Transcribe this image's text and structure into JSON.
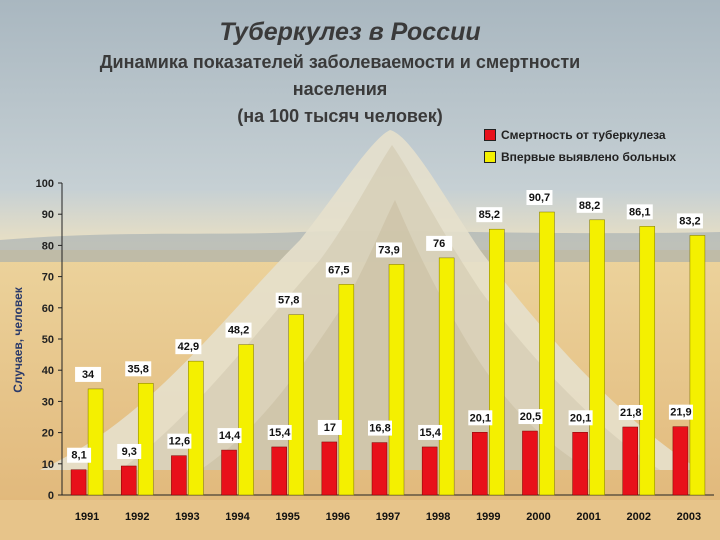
{
  "page": {
    "title": "Туберкулез в России",
    "subtitle_line1": "Динамика показателей заболеваемости и смертности",
    "subtitle_line2": "населения",
    "subtitle_line3": "(на 100 тысяч человек)"
  },
  "colors": {
    "mortality": "#e8101a",
    "incidence": "#f4f000",
    "label_bg": "#ffffff"
  },
  "chart_data": {
    "type": "bar",
    "title": "Туберкулез в России",
    "subtitle": "Динамика показателей заболеваемости и смертности населения (на 100 тысяч человек)",
    "xlabel": "",
    "ylabel": "Случаев, человек",
    "ylim": [
      0,
      100
    ],
    "yticks": [
      0,
      10,
      20,
      30,
      40,
      50,
      60,
      70,
      80,
      90,
      100
    ],
    "grid": false,
    "legend_position": "top-right",
    "categories": [
      "1991",
      "1992",
      "1993",
      "1994",
      "1995",
      "1996",
      "1997",
      "1998",
      "1999",
      "2000",
      "2001",
      "2002",
      "2003"
    ],
    "series": [
      {
        "name": "Смертность от туберкулеза",
        "color": "#e8101a",
        "values": [
          8.1,
          9.3,
          12.6,
          14.4,
          15.4,
          17,
          16.8,
          15.4,
          20.1,
          20.5,
          20.1,
          21.8,
          21.9
        ],
        "labels": [
          "8,1",
          "9,3",
          "12,6",
          "14,4",
          "15,4",
          "17",
          "16,8",
          "15,4",
          "20,1",
          "20,5",
          "20,1",
          "21,8",
          "21,9"
        ]
      },
      {
        "name": "Впервые выявлено больных",
        "color": "#f4f000",
        "values": [
          34,
          35.8,
          42.9,
          48.2,
          57.8,
          67.5,
          73.9,
          76,
          85.2,
          90.7,
          88.2,
          86.1,
          83.2
        ],
        "labels": [
          "34",
          "35,8",
          "42,9",
          "48,2",
          "57,8",
          "67,5",
          "73,9",
          "76",
          "85,2",
          "90,7",
          "88,2",
          "86,1",
          "83,2"
        ]
      }
    ]
  }
}
